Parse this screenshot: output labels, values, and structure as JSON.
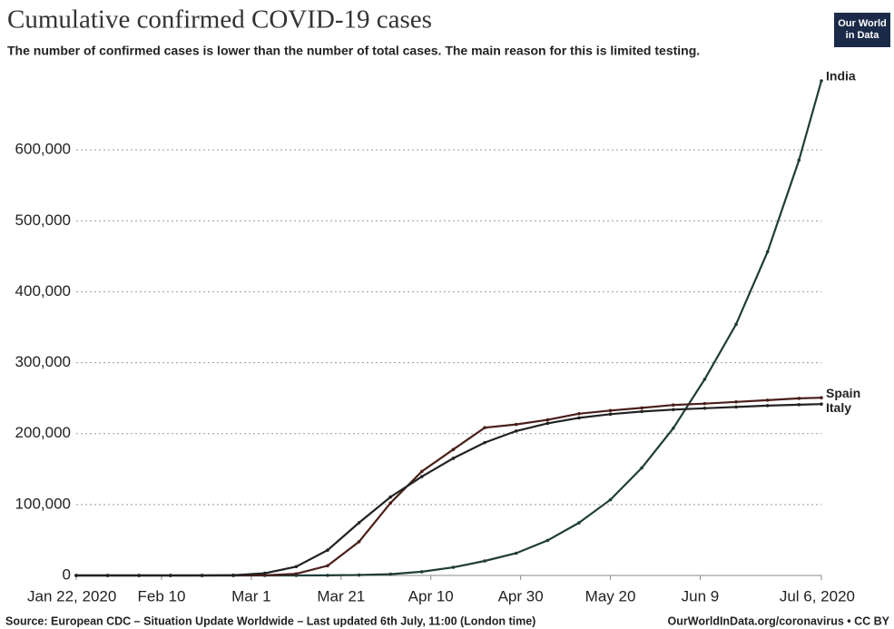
{
  "chart_data": {
    "type": "line",
    "title": "Cumulative confirmed COVID-19 cases",
    "subtitle": "The number of confirmed cases is lower than the number of total cases. The main reason for this is limited testing.",
    "source": "Source: European CDC – Situation Update Worldwide – Last updated 6th July, 11:00 (London time)",
    "credit": "OurWorldInData.org/coronavirus • CC BY",
    "logo": [
      "Our World",
      "in Data"
    ],
    "x": [
      "2020-01-22",
      "2020-01-29",
      "2020-02-05",
      "2020-02-12",
      "2020-02-19",
      "2020-02-26",
      "2020-03-04",
      "2020-03-11",
      "2020-03-18",
      "2020-03-25",
      "2020-04-01",
      "2020-04-08",
      "2020-04-15",
      "2020-04-22",
      "2020-04-29",
      "2020-05-06",
      "2020-05-13",
      "2020-05-20",
      "2020-05-27",
      "2020-06-03",
      "2020-06-10",
      "2020-06-17",
      "2020-06-24",
      "2020-07-01",
      "2020-07-06"
    ],
    "series": [
      {
        "name": "India",
        "color": "#1f3d38",
        "values": [
          0,
          0,
          3,
          3,
          3,
          3,
          28,
          62,
          151,
          606,
          1834,
          5194,
          11439,
          20471,
          31332,
          49391,
          74281,
          106750,
          151767,
          207615,
          276583,
          354065,
          456183,
          585493,
          697413
        ]
      },
      {
        "name": "Spain",
        "color": "#4a1f1a",
        "values": [
          0,
          0,
          1,
          2,
          2,
          12,
          222,
          2277,
          13716,
          47610,
          102136,
          146690,
          177633,
          208389,
          212917,
          219329,
          228030,
          232555,
          236259,
          240326,
          242280,
          244683,
          247086,
          249659,
          250545
        ]
      },
      {
        "name": "Italy",
        "color": "#222222",
        "values": [
          0,
          0,
          2,
          3,
          3,
          400,
          3089,
          12462,
          35713,
          74386,
          110574,
          139422,
          165155,
          187327,
          203591,
          214457,
          222104,
          227364,
          231139,
          233836,
          235763,
          237500,
          239410,
          240760,
          241611
        ]
      }
    ],
    "xlim": [
      "2020-01-22",
      "2020-07-06"
    ],
    "xticks": [
      {
        "value": "2020-01-22",
        "label": "Jan 22, 2020"
      },
      {
        "value": "2020-02-10",
        "label": "Feb 10"
      },
      {
        "value": "2020-03-01",
        "label": "Mar 1"
      },
      {
        "value": "2020-03-21",
        "label": "Mar 21"
      },
      {
        "value": "2020-04-10",
        "label": "Apr 10"
      },
      {
        "value": "2020-04-30",
        "label": "Apr 30"
      },
      {
        "value": "2020-05-20",
        "label": "May 20"
      },
      {
        "value": "2020-06-09",
        "label": "Jun 9"
      },
      {
        "value": "2020-07-06",
        "label": "Jul 6, 2020"
      }
    ],
    "ylim": [
      0,
      700000
    ],
    "yticks": [
      0,
      {
        "value": 100000,
        "label": "100,000"
      },
      {
        "value": 200000,
        "label": "200,000"
      },
      {
        "value": 300000,
        "label": "300,000"
      },
      {
        "value": 400000,
        "label": "400,000"
      },
      {
        "value": 500000,
        "label": "500,000"
      },
      {
        "value": 600000,
        "label": "600,000"
      }
    ],
    "grid": true
  }
}
